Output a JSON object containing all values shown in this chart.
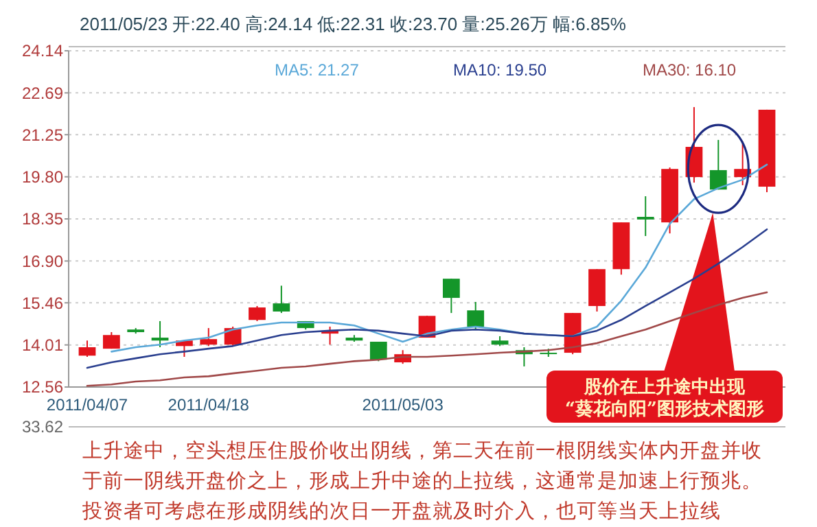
{
  "chart_data": {
    "type": "candlestick",
    "title": "2011/05/23  开:22.40  高:24.14  低:22.31  收:23.70  量:25.26万  幅:6.85%",
    "categories": [
      "2011/04/07",
      null,
      null,
      null,
      null,
      "2011/04/18",
      null,
      null,
      null,
      null,
      null,
      null,
      null,
      "2011/05/03",
      null,
      null,
      null,
      null,
      null,
      null,
      null,
      null,
      null,
      null,
      null,
      null,
      null,
      null,
      null
    ],
    "ohlc": [
      [
        13.64,
        14.16,
        13.6,
        13.93
      ],
      [
        13.88,
        14.45,
        13.88,
        14.35
      ],
      [
        14.54,
        14.59,
        14.4,
        14.45
      ],
      [
        14.26,
        14.83,
        13.93,
        14.16
      ],
      [
        13.97,
        14.16,
        13.6,
        14.16
      ],
      [
        14.02,
        14.59,
        13.97,
        14.21
      ],
      [
        14.02,
        14.64,
        13.97,
        14.59
      ],
      [
        14.87,
        15.35,
        14.83,
        15.3
      ],
      [
        15.44,
        16.05,
        15.11,
        15.16
      ],
      [
        14.83,
        14.83,
        14.54,
        14.59
      ],
      [
        14.4,
        14.64,
        14.02,
        14.5
      ],
      [
        14.26,
        14.35,
        14.12,
        14.16
      ],
      [
        14.12,
        14.12,
        13.45,
        13.5
      ],
      [
        13.41,
        13.83,
        13.36,
        13.69
      ],
      [
        14.26,
        15.01,
        14.26,
        15.01
      ],
      [
        16.29,
        16.29,
        15.11,
        15.63
      ],
      [
        15.2,
        15.49,
        14.54,
        14.64
      ],
      [
        14.16,
        14.31,
        13.97,
        14.02
      ],
      [
        13.83,
        13.93,
        13.27,
        13.69
      ],
      [
        13.74,
        13.88,
        13.6,
        13.74
      ],
      [
        13.74,
        15.11,
        13.69,
        15.11
      ],
      [
        15.35,
        16.62,
        15.16,
        16.62
      ],
      [
        16.62,
        18.23,
        16.43,
        18.23
      ],
      [
        18.42,
        19.13,
        17.76,
        18.33
      ],
      [
        18.23,
        20.12,
        17.85,
        20.07
      ],
      [
        19.79,
        22.2,
        19.6,
        20.83
      ],
      [
        20.03,
        21.07,
        19.36,
        19.36
      ],
      [
        19.79,
        21.02,
        19.51,
        20.07
      ],
      [
        19.46,
        22.11,
        19.27,
        22.11
      ]
    ],
    "colors": [
      "#e3141c",
      "#e3141c",
      "#14962a",
      "#14962a",
      "#e3141c",
      "#e3141c",
      "#e3141c",
      "#e3141c",
      "#14962a",
      "#14962a",
      "#e3141c",
      "#14962a",
      "#14962a",
      "#e3141c",
      "#e3141c",
      "#14962a",
      "#14962a",
      "#14962a",
      "#14962a",
      "#14962a",
      "#e3141c",
      "#e3141c",
      "#e3141c",
      "#14962a",
      "#e3141c",
      "#e3141c",
      "#14962a",
      "#e3141c",
      "#e3141c"
    ],
    "series": [
      {
        "type": "line",
        "name": "MA5: 21.27",
        "color": "#5aa8d8",
        "values": [
          null,
          13.78,
          13.93,
          14.02,
          14.16,
          14.26,
          14.54,
          14.68,
          14.78,
          14.78,
          14.78,
          14.68,
          14.4,
          14.12,
          14.4,
          14.54,
          14.64,
          14.54,
          14.4,
          14.35,
          14.31,
          14.64,
          15.53,
          16.67,
          18.18,
          19.03,
          19.41,
          19.7,
          20.22
        ]
      },
      {
        "type": "line",
        "name": "MA10: 19.50",
        "color": "#2a3f8f",
        "values": [
          13.22,
          13.41,
          13.55,
          13.69,
          13.78,
          13.88,
          13.97,
          14.16,
          14.35,
          14.45,
          14.5,
          14.54,
          14.5,
          14.4,
          14.31,
          14.5,
          14.54,
          14.5,
          14.4,
          14.35,
          14.31,
          14.5,
          14.87,
          15.35,
          15.82,
          16.29,
          16.81,
          17.38,
          17.99
        ]
      },
      {
        "type": "line",
        "name": "MA30: 16.10",
        "color": "#a04848",
        "values": [
          12.6,
          12.65,
          12.75,
          12.79,
          12.89,
          12.93,
          13.03,
          13.12,
          13.22,
          13.27,
          13.36,
          13.45,
          13.5,
          13.6,
          13.6,
          13.64,
          13.69,
          13.74,
          13.78,
          13.83,
          13.93,
          14.07,
          14.31,
          14.54,
          14.83,
          15.11,
          15.39,
          15.63,
          15.82
        ]
      }
    ],
    "ylim": [
      12.56,
      24.14
    ],
    "yticks": [
      12.56,
      14.01,
      15.46,
      {
        "value": 16.9,
        "label": "16.90"
      },
      18.35,
      {
        "value": 19.8,
        "label": "19.80"
      },
      21.25,
      22.69,
      24.14
    ],
    "grid": "y",
    "legend": "top",
    "annotations": [
      "股价在上升途中出现\n“葵花向阳”图形技术图形",
      "33.62",
      "上升途中，空头想压住股价收出阴线，第二天在前一根阴线实体内开盘并收于前一阴线开盘价之上，形成上升中途的上拉线，这通常是加速上行预兆。投资者可考虑在形成阴线的次日一开盘就及时介入，也可等当天上拉线"
    ]
  }
}
